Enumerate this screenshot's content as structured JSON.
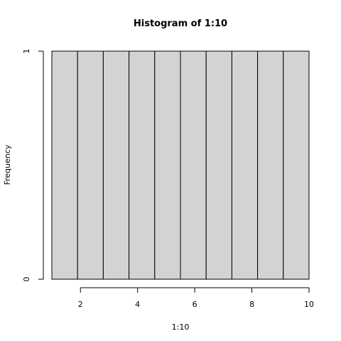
{
  "chart_data": {
    "type": "bar",
    "title": "Histogram of 1:10",
    "xlabel": "1:10",
    "ylabel": "Frequency",
    "bin_edges": [
      1,
      1.9,
      2.8,
      3.7,
      4.6,
      5.5,
      6.4,
      7.3,
      8.2,
      9.1,
      10
    ],
    "values": [
      1,
      1,
      1,
      1,
      1,
      1,
      1,
      1,
      1,
      1
    ],
    "xlim": [
      1,
      10
    ],
    "ylim": [
      0,
      1
    ],
    "x_ticks": [
      2,
      4,
      6,
      8,
      10
    ],
    "x_tick_labels": [
      "2",
      "4",
      "6",
      "8",
      "10"
    ],
    "y_ticks": [
      0,
      1
    ],
    "y_tick_labels": [
      "0",
      "1"
    ],
    "bar_color": "#d3d3d3",
    "grid": false,
    "legend": "none"
  }
}
